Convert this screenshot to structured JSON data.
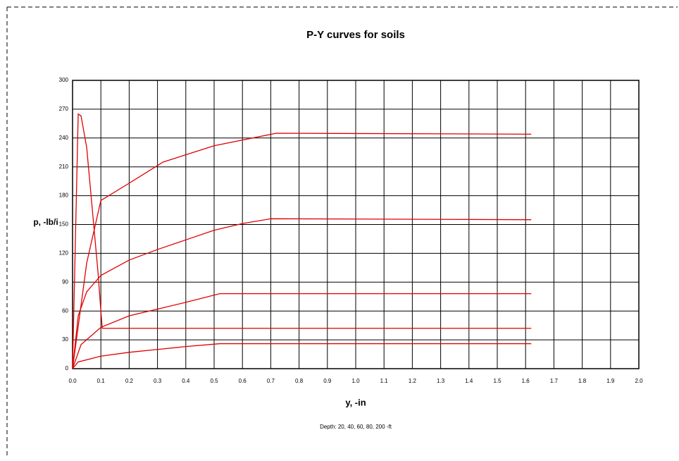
{
  "chart_data": {
    "type": "line",
    "title": "P-Y curves for soils",
    "x_label": "y, -in",
    "y_label": "p, -lb/i",
    "note": "Depth: 20, 40, 60, 80, 200 -ft",
    "xlim": [
      0,
      2
    ],
    "ylim": [
      0,
      300
    ],
    "xticks": [
      {
        "value": 0,
        "label": "0.0"
      },
      0.1,
      0.2,
      0.3,
      0.4,
      0.5,
      0.6,
      0.7,
      0.8,
      0.9,
      {
        "value": 1,
        "label": "1.0"
      },
      1.1,
      1.2,
      1.3,
      1.4,
      1.5,
      1.6,
      1.7,
      1.8,
      1.9,
      {
        "value": 2,
        "label": "2.0"
      }
    ],
    "yticks": [
      0,
      30,
      60,
      90,
      120,
      150,
      180,
      210,
      240,
      270,
      300
    ],
    "grid": true,
    "series": [
      {
        "color": "#e00000",
        "x": [
          0,
          0.02,
          0.1,
          0.2,
          0.3,
          0.4,
          0.52,
          1.62
        ],
        "values": [
          0,
          7,
          13,
          17,
          20,
          23,
          26,
          26
        ]
      },
      {
        "color": "#e00000",
        "x": [
          0,
          0.03,
          0.1,
          0.2,
          0.3,
          0.4,
          0.52,
          1.62
        ],
        "values": [
          0,
          25,
          43,
          55,
          62,
          69,
          78,
          78
        ]
      },
      {
        "color": "#e00000",
        "x": [
          0,
          0.02,
          0.05,
          0.1,
          0.2,
          0.3,
          0.4,
          0.5,
          0.6,
          0.7,
          1.62
        ],
        "values": [
          0,
          55,
          80,
          97,
          113,
          124,
          134,
          144,
          151,
          156,
          155
        ]
      },
      {
        "color": "#e00000",
        "x": [
          0,
          0.05,
          0.1,
          0.2,
          0.32,
          0.5,
          0.72,
          1.62
        ],
        "values": [
          0,
          110,
          175,
          193,
          215,
          232,
          245,
          244
        ]
      },
      {
        "color": "#e00000",
        "x": [
          0,
          0.02,
          0.03,
          0.05,
          0.09,
          0.1,
          0.105,
          1.62
        ],
        "values": [
          0,
          265,
          263,
          230,
          100,
          60,
          42,
          42
        ]
      }
    ]
  }
}
